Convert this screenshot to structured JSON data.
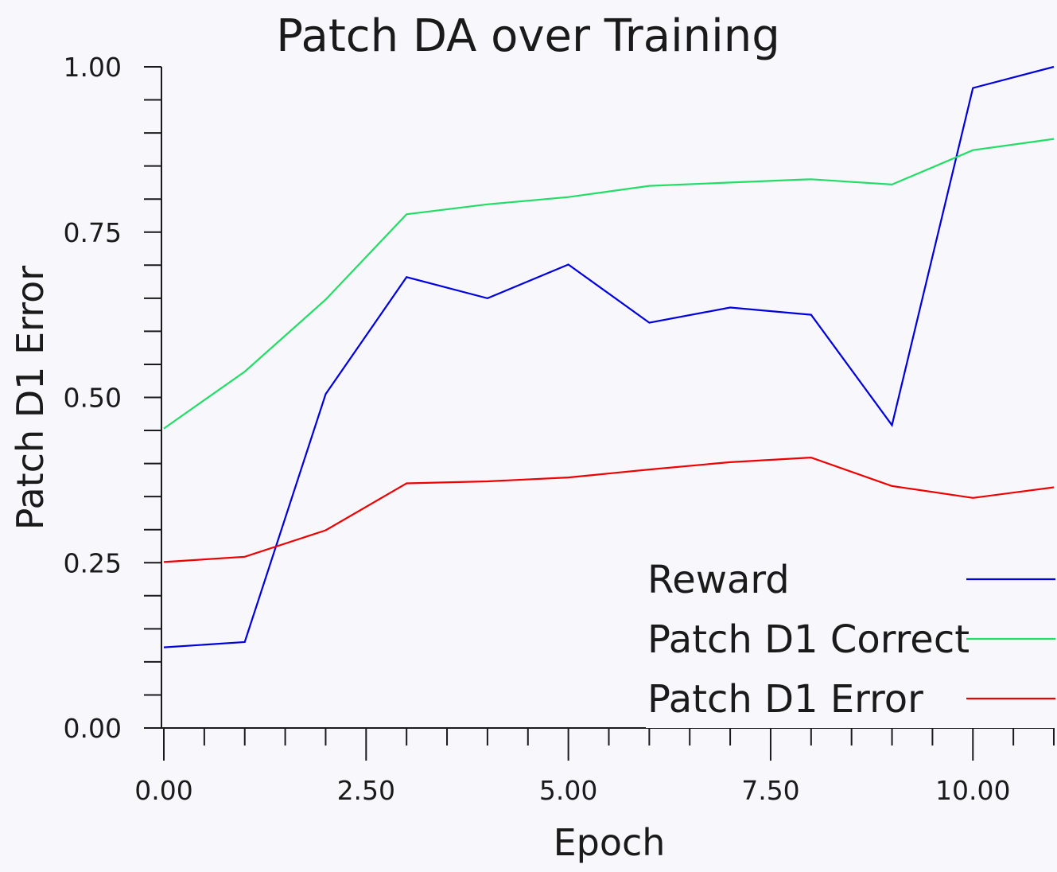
{
  "chart_data": {
    "type": "line",
    "title": "Patch DA over Training",
    "xlabel": "Epoch",
    "ylabel": "Patch D1 Error",
    "x": [
      0,
      1,
      2,
      3,
      4,
      5,
      6,
      7,
      8,
      9,
      10,
      11
    ],
    "xlim": [
      0,
      11
    ],
    "ylim": [
      0,
      1
    ],
    "x_ticks": [
      "0.00",
      "2.50",
      "5.00",
      "7.50",
      "10.00"
    ],
    "y_ticks": [
      "0.00",
      "0.25",
      "0.50",
      "0.75",
      "1.00"
    ],
    "legend_placement": "bottom-right",
    "grid": false,
    "series": [
      {
        "name": "Reward",
        "color": "#0000dd",
        "values": [
          0.122,
          0.13,
          0.505,
          0.682,
          0.65,
          0.701,
          0.613,
          0.636,
          0.625,
          0.458,
          0.968,
          1.0
        ]
      },
      {
        "name": "Patch D1 Correct",
        "color": "#22dd66",
        "values": [
          0.453,
          0.539,
          0.648,
          0.777,
          0.792,
          0.803,
          0.82,
          0.825,
          0.83,
          0.822,
          0.874,
          0.891
        ]
      },
      {
        "name": "Patch D1 Error",
        "color": "#ee0000",
        "values": [
          0.251,
          0.259,
          0.299,
          0.37,
          0.373,
          0.379,
          0.391,
          0.402,
          0.409,
          0.366,
          0.348,
          0.364
        ]
      }
    ]
  }
}
